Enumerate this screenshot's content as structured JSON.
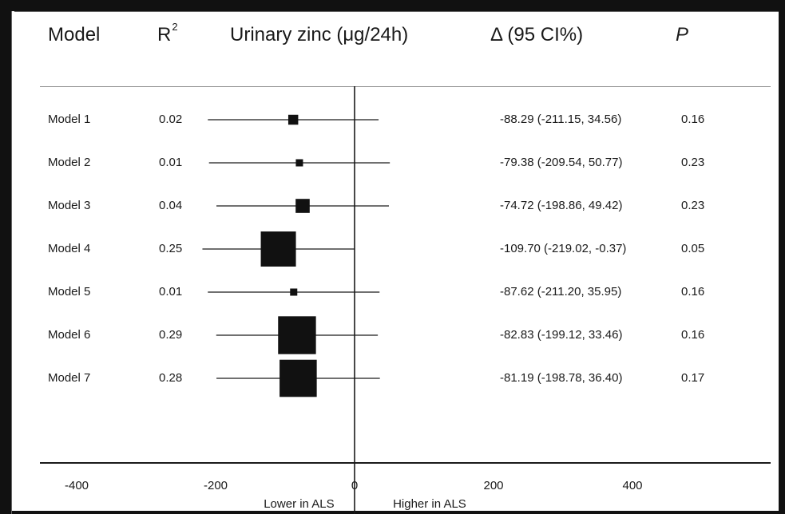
{
  "header": {
    "model": "Model",
    "r2_base": "R",
    "r2_sup": "2",
    "zinc": "Urinary zinc (μg/24h)",
    "delta": "Δ (95 CI%)",
    "p": "P"
  },
  "chart_data": {
    "type": "forest",
    "xlim": [
      -400,
      400
    ],
    "tick_labels": [
      "-400",
      "-200",
      "0",
      "200",
      "400"
    ],
    "ticks": [
      -400,
      -200,
      0,
      200,
      400
    ],
    "axis_annotations": {
      "lower": "Lower in ALS",
      "higher": "Higher in ALS"
    },
    "reference_line": 0,
    "grid": false,
    "rows": [
      {
        "model": "Model 1",
        "r2": "0.02",
        "estimate": -88.29,
        "ci": [
          -211.15,
          34.56
        ],
        "ci_text": "-88.29 (-211.15, 34.56)",
        "p": "0.16",
        "weight": 0.02
      },
      {
        "model": "Model 2",
        "r2": "0.01",
        "estimate": -79.38,
        "ci": [
          -209.54,
          50.77
        ],
        "ci_text": "-79.38 (-209.54, 50.77)",
        "p": "0.23",
        "weight": 0.01
      },
      {
        "model": "Model 3",
        "r2": "0.04",
        "estimate": -74.72,
        "ci": [
          -198.86,
          49.42
        ],
        "ci_text": "-74.72 (-198.86, 49.42)",
        "p": "0.23",
        "weight": 0.04
      },
      {
        "model": "Model 4",
        "r2": "0.25",
        "estimate": -109.7,
        "ci": [
          -219.02,
          -0.37
        ],
        "ci_text": "-109.70 (-219.02, -0.37)",
        "p": "0.05",
        "weight": 0.25
      },
      {
        "model": "Model 5",
        "r2": "0.01",
        "estimate": -87.62,
        "ci": [
          -211.2,
          35.95
        ],
        "ci_text": "-87.62 (-211.20, 35.95)",
        "p": "0.16",
        "weight": 0.01
      },
      {
        "model": "Model 6",
        "r2": "0.29",
        "estimate": -82.83,
        "ci": [
          -199.12,
          33.46
        ],
        "ci_text": "-82.83 (-199.12, 33.46)",
        "p": "0.16",
        "weight": 0.29
      },
      {
        "model": "Model 7",
        "r2": "0.28",
        "estimate": -81.19,
        "ci": [
          -198.78,
          36.4
        ],
        "ci_text": "-81.19 (-198.78, 36.40)",
        "p": "0.17",
        "weight": 0.28
      }
    ]
  }
}
